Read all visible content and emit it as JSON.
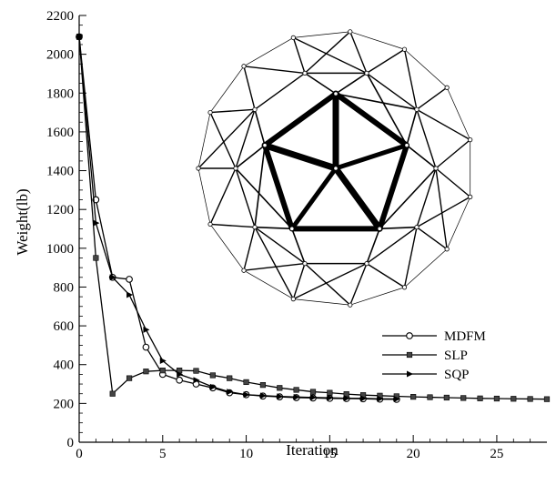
{
  "chart_data": {
    "type": "line",
    "title": "",
    "xlabel": "Iteration",
    "ylabel": "Weight(lb)",
    "xlim": [
      0,
      28
    ],
    "ylim": [
      0,
      2200
    ],
    "x_ticks": [
      0,
      5,
      10,
      15,
      20,
      25
    ],
    "y_ticks": [
      0,
      200,
      400,
      600,
      800,
      1000,
      1200,
      1400,
      1600,
      1800,
      2000,
      2200
    ],
    "legend_position": "right",
    "grid": false,
    "series": [
      {
        "name": "MDFM",
        "marker": "circle",
        "x": [
          0,
          1,
          2,
          3,
          4,
          5,
          6,
          7,
          8,
          9,
          10,
          11,
          12,
          13,
          14,
          15,
          16,
          17,
          18,
          19
        ],
        "y": [
          2090,
          1250,
          850,
          840,
          490,
          350,
          320,
          300,
          280,
          255,
          245,
          238,
          234,
          230,
          228,
          226,
          225,
          224,
          222,
          221
        ]
      },
      {
        "name": "SLP",
        "marker": "square",
        "x": [
          0,
          1,
          2,
          3,
          4,
          5,
          6,
          7,
          8,
          9,
          10,
          11,
          12,
          13,
          14,
          15,
          16,
          17,
          18,
          19,
          20,
          21,
          22,
          23,
          24,
          25,
          26,
          27,
          28
        ],
        "y": [
          2090,
          950,
          250,
          330,
          365,
          370,
          370,
          368,
          345,
          330,
          310,
          295,
          280,
          270,
          260,
          255,
          248,
          243,
          240,
          237,
          234,
          232,
          230,
          228,
          226,
          225,
          224,
          223,
          222
        ]
      },
      {
        "name": "SQP",
        "marker": "triangle-right",
        "x": [
          0,
          1,
          2,
          3,
          4,
          5,
          6,
          7,
          8,
          9,
          10,
          11,
          12,
          13,
          14,
          15,
          16,
          17,
          18,
          19
        ],
        "y": [
          2090,
          1130,
          850,
          760,
          580,
          420,
          350,
          320,
          285,
          260,
          245,
          240,
          236,
          233,
          231,
          229,
          227,
          226,
          224,
          223
        ]
      }
    ]
  },
  "inset_figure": {
    "icon": "truss-dome-diagram"
  }
}
